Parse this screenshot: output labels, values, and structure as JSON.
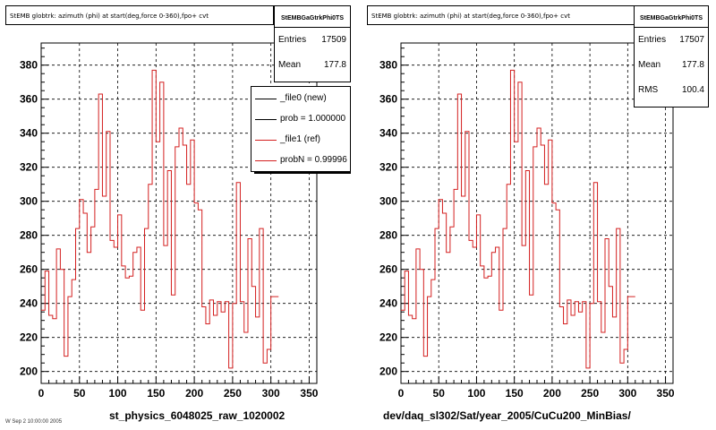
{
  "panels": [
    {
      "title": "StEMB globtrk: azimuth (phi) at start(deg,force 0-360),fpo+ cvt",
      "stats": {
        "name": "StEMBGaGtrkPhi0TS",
        "rows": [
          {
            "label": "Entries",
            "value": "17509"
          },
          {
            "label": "Mean",
            "value": "177.8"
          }
        ]
      },
      "xlabel": "st_physics_6048025_raw_1020002"
    },
    {
      "title": "StEMB globtrk: azimuth (phi) at start(deg,force 0-360),fpo+ cvt",
      "stats": {
        "name": "StEMBGaGtrkPhi0TS",
        "rows": [
          {
            "label": "Entries",
            "value": "17507"
          },
          {
            "label": "Mean",
            "value": "177.8"
          },
          {
            "label": "RMS",
            "value": "100.4"
          }
        ]
      },
      "xlabel": "dev/daq_sl302/Sat/year_2005/CuCu200_MinBias/"
    }
  ],
  "legend": [
    {
      "label": "_file0 (new)",
      "color": "#000000"
    },
    {
      "label": "prob = 1.000000",
      "color": "#000000"
    },
    {
      "label": "_file1 (ref)",
      "color": "#d42020"
    },
    {
      "label": "probN = 0.99996",
      "color": "#d42020"
    }
  ],
  "footer": "W Sep 2 10:00:00 2005",
  "colors": {
    "new": "#000000",
    "ref": "#d42020"
  },
  "chart_data": [
    {
      "type": "line",
      "title": "StEMB globtrk: azimuth (phi) at start(deg,force 0-360),fpo+ cvt",
      "xlabel": "st_physics_6048025_raw_1020002",
      "ylabel": "",
      "xlim": [
        0,
        360
      ],
      "ylim": [
        193,
        393
      ],
      "xticks": [
        0,
        50,
        100,
        150,
        200,
        250,
        300,
        350
      ],
      "yticks": [
        200,
        220,
        240,
        260,
        280,
        300,
        320,
        340,
        360,
        380
      ],
      "grid": true,
      "bin_width": 5,
      "series": [
        {
          "name": "_file1 (ref)",
          "values": [
            236,
            259,
            233,
            231,
            272,
            260,
            209,
            244,
            254,
            284,
            301,
            293,
            270,
            285,
            307,
            363,
            303,
            341,
            277,
            273,
            292,
            262,
            255,
            256,
            270,
            273,
            236,
            284,
            310,
            377,
            335,
            370,
            274,
            318,
            245,
            332,
            343,
            333,
            310,
            336,
            299,
            295,
            238,
            228,
            242,
            233,
            241,
            235,
            241,
            202,
            240,
            311,
            241,
            223,
            278,
            250,
            232,
            284,
            205,
            213,
            244,
            244
          ]
        }
      ]
    },
    {
      "type": "line",
      "title": "StEMB globtrk: azimuth (phi) at start(deg,force 0-360),fpo+ cvt",
      "xlabel": "dev/daq_sl302/Sat/year_2005/CuCu200_MinBias/",
      "ylabel": "",
      "xlim": [
        0,
        360
      ],
      "ylim": [
        193,
        393
      ],
      "xticks": [
        0,
        50,
        100,
        150,
        200,
        250,
        300,
        350
      ],
      "yticks": [
        200,
        220,
        240,
        260,
        280,
        300,
        320,
        340,
        360,
        380
      ],
      "grid": true,
      "bin_width": 5,
      "series": [
        {
          "name": "_file1 (ref)",
          "values": [
            236,
            259,
            233,
            231,
            272,
            260,
            209,
            244,
            254,
            284,
            301,
            293,
            270,
            285,
            307,
            363,
            303,
            341,
            277,
            273,
            292,
            262,
            255,
            256,
            270,
            273,
            236,
            284,
            310,
            377,
            335,
            370,
            274,
            318,
            245,
            332,
            343,
            333,
            310,
            336,
            299,
            295,
            238,
            228,
            242,
            233,
            241,
            235,
            241,
            202,
            240,
            311,
            241,
            223,
            278,
            250,
            232,
            284,
            205,
            213,
            244,
            244
          ]
        }
      ]
    }
  ]
}
